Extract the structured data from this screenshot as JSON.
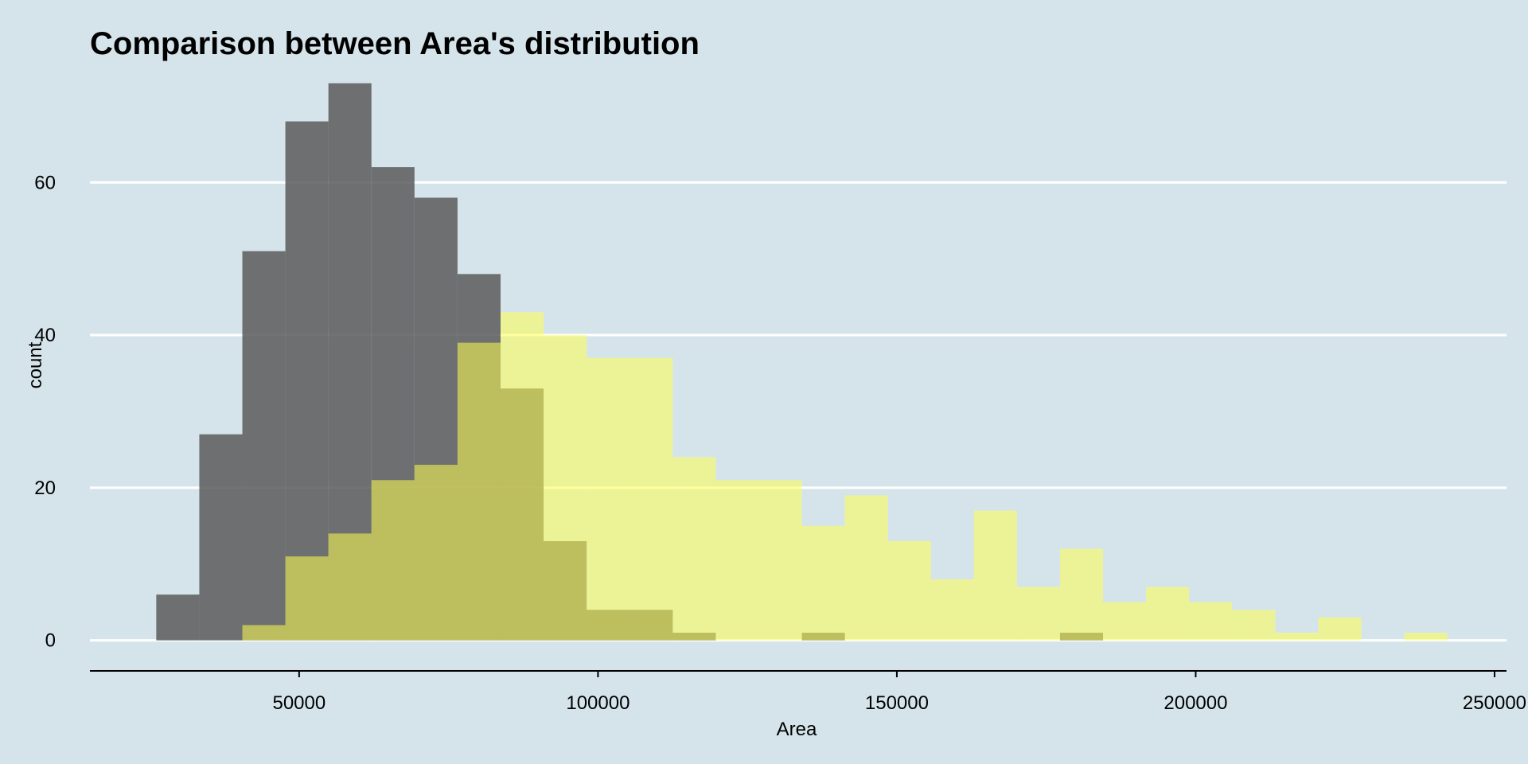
{
  "chart_data": {
    "type": "bar",
    "subtype": "overlaid-histogram",
    "title": "Comparison between Area's distribution",
    "xlabel": "Area",
    "ylabel": "count",
    "xlim": [
      15000,
      252000
    ],
    "ylim": [
      -4,
      74
    ],
    "x_ticks": [
      50000,
      100000,
      150000,
      200000,
      250000
    ],
    "y_ticks": [
      0,
      20,
      40,
      60
    ],
    "x_tick_labels": [
      "50000",
      "100000",
      "150000",
      "200000",
      "250000"
    ],
    "y_tick_labels": [
      "0",
      "20",
      "40",
      "60"
    ],
    "bin_width": 7200,
    "bin_start": 26100,
    "grid": {
      "horizontal_major": true,
      "vertical": false
    },
    "legend": "none",
    "background_color": "#d5e4eb",
    "grid_color": "#ffffff",
    "series": [
      {
        "color": "#5a5a5a",
        "opacity": 0.85,
        "bins": [
          {
            "x_start": 26100,
            "x_end": 33300,
            "count": 6
          },
          {
            "x_start": 33300,
            "x_end": 40500,
            "count": 27
          },
          {
            "x_start": 40500,
            "x_end": 47700,
            "count": 51
          },
          {
            "x_start": 47700,
            "x_end": 54900,
            "count": 68
          },
          {
            "x_start": 54900,
            "x_end": 62100,
            "count": 73
          },
          {
            "x_start": 62100,
            "x_end": 69300,
            "count": 62
          },
          {
            "x_start": 69300,
            "x_end": 76500,
            "count": 58
          },
          {
            "x_start": 76500,
            "x_end": 83700,
            "count": 48
          },
          {
            "x_start": 83700,
            "x_end": 90900,
            "count": 33
          },
          {
            "x_start": 90900,
            "x_end": 98100,
            "count": 13
          },
          {
            "x_start": 98100,
            "x_end": 105300,
            "count": 4
          },
          {
            "x_start": 105300,
            "x_end": 112500,
            "count": 4
          },
          {
            "x_start": 112500,
            "x_end": 119700,
            "count": 1
          },
          {
            "x_start": 119700,
            "x_end": 126900,
            "count": 0
          },
          {
            "x_start": 126900,
            "x_end": 134100,
            "count": 0
          },
          {
            "x_start": 134100,
            "x_end": 141300,
            "count": 1
          },
          {
            "x_start": 141300,
            "x_end": 148500,
            "count": 0
          },
          {
            "x_start": 148500,
            "x_end": 155700,
            "count": 0
          },
          {
            "x_start": 155700,
            "x_end": 162900,
            "count": 0
          },
          {
            "x_start": 162900,
            "x_end": 170100,
            "count": 0
          },
          {
            "x_start": 170100,
            "x_end": 177300,
            "count": 0
          },
          {
            "x_start": 177300,
            "x_end": 184500,
            "count": 1
          }
        ]
      },
      {
        "color": "#ffff50",
        "opacity": 0.55,
        "bins": [
          {
            "x_start": 40500,
            "x_end": 47700,
            "count": 2
          },
          {
            "x_start": 47700,
            "x_end": 54900,
            "count": 11
          },
          {
            "x_start": 54900,
            "x_end": 62100,
            "count": 14
          },
          {
            "x_start": 62100,
            "x_end": 69300,
            "count": 21
          },
          {
            "x_start": 69300,
            "x_end": 76500,
            "count": 23
          },
          {
            "x_start": 76500,
            "x_end": 83700,
            "count": 39
          },
          {
            "x_start": 83700,
            "x_end": 90900,
            "count": 43
          },
          {
            "x_start": 90900,
            "x_end": 98100,
            "count": 40
          },
          {
            "x_start": 98100,
            "x_end": 105300,
            "count": 37
          },
          {
            "x_start": 105300,
            "x_end": 112500,
            "count": 37
          },
          {
            "x_start": 112500,
            "x_end": 119700,
            "count": 24
          },
          {
            "x_start": 119700,
            "x_end": 126900,
            "count": 21
          },
          {
            "x_start": 126900,
            "x_end": 134100,
            "count": 21
          },
          {
            "x_start": 134100,
            "x_end": 141300,
            "count": 15
          },
          {
            "x_start": 141300,
            "x_end": 148500,
            "count": 19
          },
          {
            "x_start": 148500,
            "x_end": 155700,
            "count": 13
          },
          {
            "x_start": 155700,
            "x_end": 162900,
            "count": 8
          },
          {
            "x_start": 162900,
            "x_end": 170100,
            "count": 17
          },
          {
            "x_start": 170100,
            "x_end": 177300,
            "count": 7
          },
          {
            "x_start": 177300,
            "x_end": 184500,
            "count": 12
          },
          {
            "x_start": 184500,
            "x_end": 191700,
            "count": 5
          },
          {
            "x_start": 191700,
            "x_end": 198900,
            "count": 7
          },
          {
            "x_start": 198900,
            "x_end": 206100,
            "count": 5
          },
          {
            "x_start": 206100,
            "x_end": 213300,
            "count": 4
          },
          {
            "x_start": 213300,
            "x_end": 220500,
            "count": 1
          },
          {
            "x_start": 220500,
            "x_end": 227700,
            "count": 3
          },
          {
            "x_start": 227700,
            "x_end": 234900,
            "count": 0
          },
          {
            "x_start": 234900,
            "x_end": 242100,
            "count": 1
          }
        ]
      }
    ]
  }
}
